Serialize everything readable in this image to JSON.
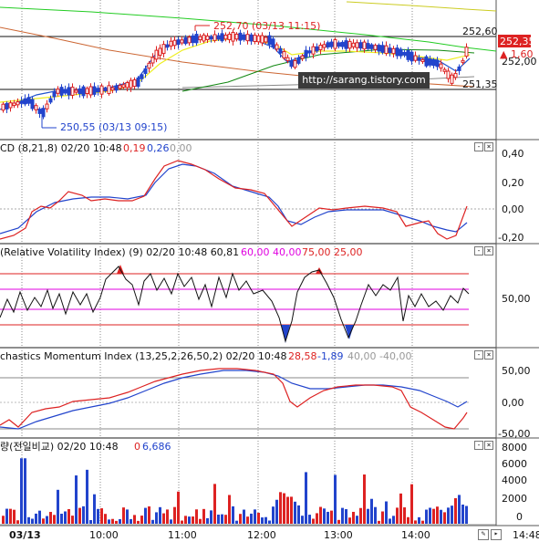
{
  "price_panel": {
    "high_label": "252,70 (03/13 11:15)",
    "low_label": "250,55 (03/13 09:15)",
    "axis_ticks": [
      "252,60",
      "252,00",
      "251,35"
    ],
    "current_price": "252,35",
    "change": "▲ 1,60",
    "watermark": "http://sarang.tistory.com"
  },
  "macd_panel": {
    "title": "CD  (8,21,8)  02/20 10:48",
    "v1": "0,19",
    "v2": "0,26",
    "v3": "0,00",
    "axis_ticks": [
      "0,40",
      "0,20",
      "0,00",
      "-0,20"
    ]
  },
  "rvi_panel": {
    "title": "(Relative Volatility Index)  (9)  02/20 10:48  60,81",
    "levels_magenta": "60,00  40,00",
    "levels_red": "75,00  25,00",
    "axis_ticks": [
      "50,00"
    ]
  },
  "smi_panel": {
    "title": "chastics Momentum Index  (13,25,2,26,50,2)  02/20 10:48",
    "v1": "28,58",
    "v2": "-1,89",
    "v3": "40,00  -40,00",
    "axis_ticks": [
      "50,00",
      "0,00",
      "-50,00"
    ]
  },
  "volume_panel": {
    "title": "량(전일비교)  02/20 10:48",
    "v1": "0",
    "v2": "6,686",
    "axis_ticks": [
      "8000",
      "6000",
      "4000",
      "2000",
      "0"
    ]
  },
  "time_axis": {
    "labels": [
      "03/13",
      "10:00",
      "11:00",
      "12:00",
      "13:00",
      "14:00"
    ],
    "right_label": "14:48"
  },
  "colors": {
    "panel_bg": "#ffffff",
    "frame": "#c8c8c8",
    "up": "#dd2222",
    "down": "#2244cc",
    "magenta": "#e000e0"
  }
}
